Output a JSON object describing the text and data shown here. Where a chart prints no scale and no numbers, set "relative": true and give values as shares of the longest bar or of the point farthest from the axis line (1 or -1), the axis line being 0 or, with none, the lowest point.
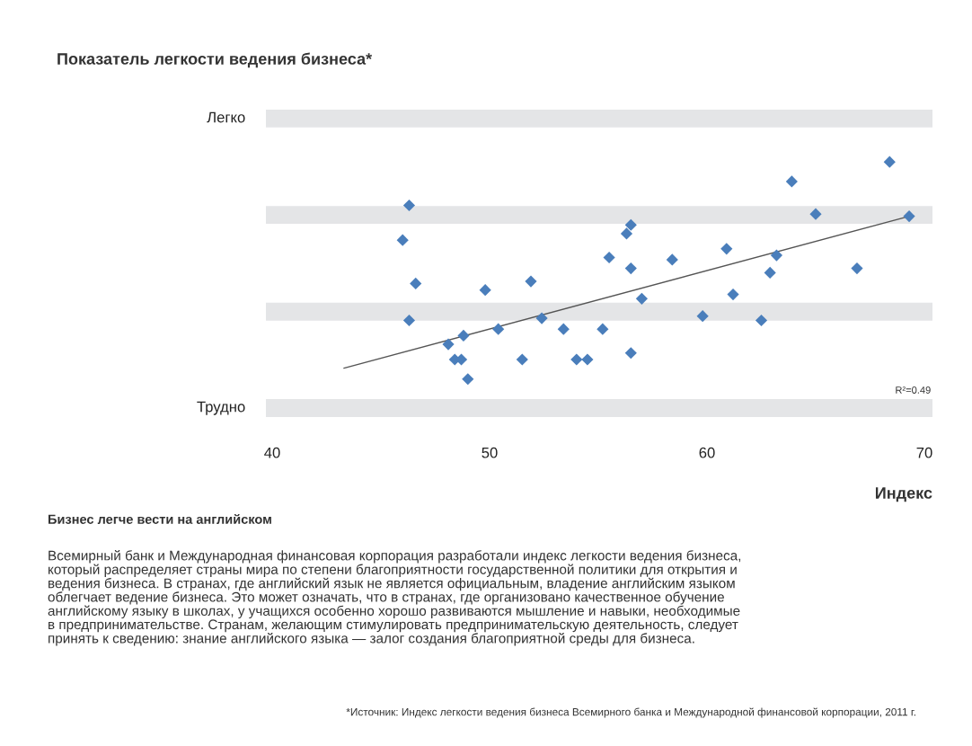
{
  "chart_data": {
    "type": "scatter",
    "title": "Показатель легкости ведения бизнеса*",
    "xlabel": "Индекс",
    "xlim": [
      40,
      70
    ],
    "xticks": [
      40,
      50,
      60,
      70
    ],
    "relative": true,
    "grid": false,
    "marker": "diamond",
    "series": [
      {
        "color": "#4a7ebb",
        "x": [
          46.3,
          46.0,
          46.6,
          46.3,
          48.1,
          48.4,
          48.7,
          48.8,
          49.0,
          49.8,
          50.4,
          51.5,
          51.9,
          52.4,
          53.4,
          54.0,
          54.5,
          55.2,
          55.5,
          56.3,
          56.5,
          56.5,
          56.5,
          57.0,
          58.4,
          59.8,
          60.9,
          61.2,
          62.5,
          62.9,
          63.2,
          63.9,
          65.0,
          66.9,
          68.4,
          69.3
        ],
        "values": [
          0.8,
          0.64,
          0.44,
          0.27,
          0.16,
          0.09,
          0.09,
          0.2,
          0,
          0.41,
          0.23,
          0.09,
          0.45,
          0.28,
          0.23,
          0.09,
          0.09,
          0.23,
          0.56,
          0.67,
          0.71,
          0.51,
          0.12,
          0.37,
          0.55,
          0.29,
          0.6,
          0.39,
          0.27,
          0.49,
          0.57,
          0.91,
          0.76,
          0.51,
          1,
          0.75
        ]
      },
      {
        "type": "line",
        "color": "#555555",
        "marker": "none",
        "x": [
          43.3,
          69.3
        ],
        "values": [
          0.05,
          0.75
        ]
      }
    ],
    "bands": [
      {
        "axis": "y",
        "from": -0.175,
        "to": -0.092,
        "color": "#e4e5e7"
      },
      {
        "axis": "y",
        "from": 0.269,
        "to": 0.352,
        "color": "#e4e5e7"
      },
      {
        "axis": "y",
        "from": 0.715,
        "to": 0.797,
        "color": "#e4e5e7"
      },
      {
        "axis": "y",
        "from": 1.159,
        "to": 1.241,
        "color": "#e4e5e7"
      }
    ],
    "annotations": [
      "R²=0.49",
      "Бизнес легче вести на английском",
      "Всемирный банк и Международная финансовая корпорация разработали индекс легкости ведения бизнеса,\nкоторый распределяет страны мира по степени благоприятности государственной политики для открытия и\nведения бизнеса. В странах, где английский язык не является официальным, владение английским языком\nоблегчает ведение бизнеса. Это может означать, что в странах, где организовано качественное обучение\nанглийскому языку в школах, у учащихся особенно хорошо развиваются мышление и навыки, необходимые\nв предпринимательстве. Странам, желающим стимулировать предпринимательскую деятельность, следует\nпринять к сведению: знание английского языка — залог создания благоприятной среды для бизнеса.",
      "*Источник: Индекс легкости ведения бизнеса Всемирного банка и Международной финансовой корпорации, 2011 г.",
      "Легко",
      "Трудно"
    ]
  }
}
